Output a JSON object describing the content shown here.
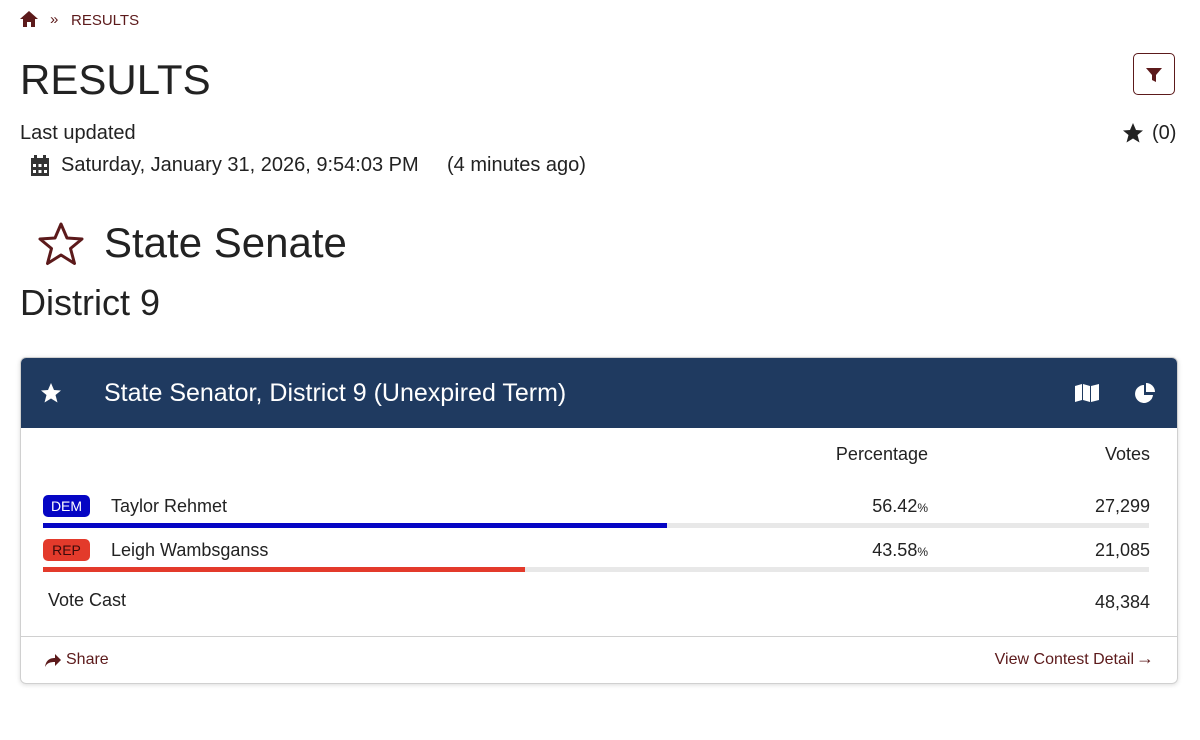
{
  "breadcrumb": {
    "current": "RESULTS"
  },
  "header": {
    "title": "RESULTS",
    "last_updated_label": "Last updated",
    "timestamp": "Saturday, January 31, 2026, 9:54:03 PM",
    "relative_time": "(4 minutes ago)",
    "favorites_count": "(0)"
  },
  "section": {
    "title": "State Senate",
    "subtitle": "District 9"
  },
  "contest": {
    "title": "State Senator, District 9 (Unexpired Term)",
    "columns": {
      "percentage": "Percentage",
      "votes": "Votes"
    },
    "candidates": [
      {
        "party": "DEM",
        "name": "Taylor Rehmet",
        "percentage": 56.42,
        "percentage_unit": "%",
        "votes": "27,299",
        "color": "#0505c4"
      },
      {
        "party": "REP",
        "name": "Leigh Wambsganss",
        "percentage": 43.58,
        "percentage_unit": "%",
        "votes": "21,085",
        "color": "#e33a2b"
      }
    ],
    "total_label": "Vote Cast",
    "total_votes": "48,384",
    "share": "Share",
    "detail_link": "View Contest Detail"
  }
}
